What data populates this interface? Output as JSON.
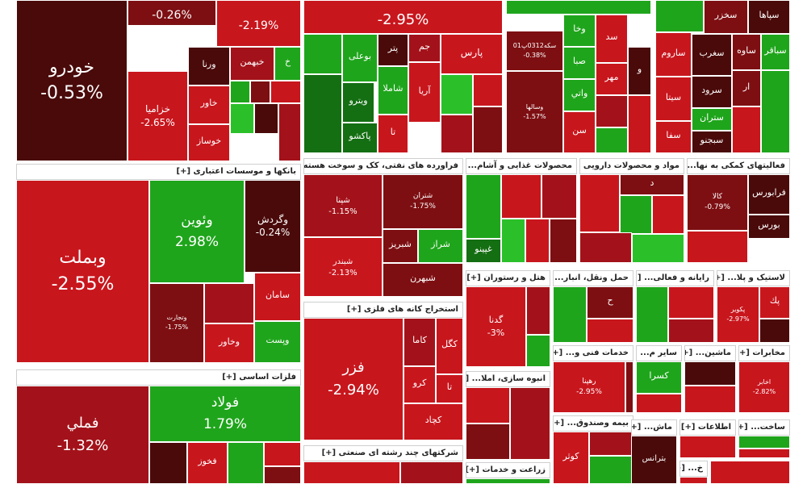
{
  "colors": {
    "dark_red": "#4a0a0a",
    "red": "#c8161d",
    "mid_red": "#a3121a",
    "deep_red": "#7d0f12",
    "green": "#1fa51c",
    "light_green": "#2bc02a",
    "dark_green": "#146e12"
  },
  "sectors": [
    {
      "id": "top-left",
      "header": "",
      "tiles": [
        {
          "name": "",
          "pct": "-0.26%",
          "c": "deep_red",
          "fs": 14
        },
        {
          "name": "",
          "pct": "-2.19%",
          "c": "red",
          "fs": 14
        },
        {
          "name": "خودرو",
          "pct": "-0.53%",
          "c": "dark_red",
          "fs": 22
        },
        {
          "name": "خزامیا",
          "pct": "-2.65%",
          "c": "red",
          "fs": 12
        },
        {
          "name": "ورنا",
          "pct": "",
          "c": "dark_red",
          "fs": 11
        },
        {
          "name": "خبهمن",
          "pct": "",
          "c": "mid_red",
          "fs": 11
        },
        {
          "name": "خ",
          "pct": "",
          "c": "green",
          "fs": 11
        },
        {
          "name": "خاور",
          "pct": "",
          "c": "red",
          "fs": 11
        },
        {
          "name": "خوساز",
          "pct": "",
          "c": "red",
          "fs": 11
        },
        {
          "name": "",
          "pct": "",
          "c": "green",
          "fs": 9
        },
        {
          "name": "",
          "pct": "",
          "c": "deep_red",
          "fs": 9
        },
        {
          "name": "",
          "pct": "",
          "c": "red",
          "fs": 9
        },
        {
          "name": "",
          "pct": "",
          "c": "light_green",
          "fs": 9
        },
        {
          "name": "",
          "pct": "",
          "c": "dark_red",
          "fs": 9
        },
        {
          "name": "",
          "pct": "",
          "c": "mid_red",
          "fs": 9
        }
      ]
    },
    {
      "id": "petroleum",
      "header": "",
      "tiles": [
        {
          "name": "",
          "pct": "-2.95%",
          "c": "red",
          "fs": 18
        },
        {
          "name": "",
          "pct": "",
          "c": "green",
          "fs": 11
        },
        {
          "name": "بوعلی",
          "pct": "",
          "c": "green",
          "fs": 11
        },
        {
          "name": "پتر",
          "pct": "",
          "c": "dark_red",
          "fs": 11
        },
        {
          "name": "جم",
          "pct": "",
          "c": "mid_red",
          "fs": 11
        },
        {
          "name": "پارس",
          "pct": "",
          "c": "red",
          "fs": 12
        },
        {
          "name": "ویترو",
          "pct": "",
          "c": "dark_green",
          "fs": 11
        },
        {
          "name": "شاملا",
          "pct": "",
          "c": "green",
          "fs": 11
        },
        {
          "name": "آریا",
          "pct": "",
          "c": "red",
          "fs": 11
        },
        {
          "name": "پاکشو",
          "pct": "",
          "c": "dark_green",
          "fs": 11
        },
        {
          "name": "تا",
          "pct": "",
          "c": "red",
          "fs": 11
        },
        {
          "name": "",
          "pct": "",
          "c": "dark_green",
          "fs": 9
        },
        {
          "name": "",
          "pct": "",
          "c": "light_green",
          "fs": 9
        },
        {
          "name": "",
          "pct": "",
          "c": "red",
          "fs": 9
        },
        {
          "name": "",
          "pct": "",
          "c": "mid_red",
          "fs": 9
        },
        {
          "name": "",
          "pct": "",
          "c": "deep_red",
          "fs": 9
        }
      ]
    },
    {
      "id": "investment",
      "header": "",
      "tiles": [
        {
          "name": "",
          "pct": "",
          "c": "green",
          "fs": 11
        },
        {
          "name": "وخا",
          "pct": "",
          "c": "green",
          "fs": 11
        },
        {
          "name": "سد",
          "pct": "",
          "c": "red",
          "fs": 11
        },
        {
          "name": "سکه0312پ01",
          "pct": "-0.38%",
          "c": "deep_red",
          "fs": 8
        },
        {
          "name": "صبا",
          "pct": "",
          "c": "green",
          "fs": 11
        },
        {
          "name": "مهر",
          "pct": "",
          "c": "red",
          "fs": 11
        },
        {
          "name": "و",
          "pct": "",
          "c": "dark_red",
          "fs": 11
        },
        {
          "name": "وسالها",
          "pct": "-1.57%",
          "c": "deep_red",
          "fs": 8
        },
        {
          "name": "واتي",
          "pct": "",
          "c": "green",
          "fs": 11
        },
        {
          "name": "سن",
          "pct": "",
          "c": "red",
          "fs": 11
        },
        {
          "name": "",
          "pct": "",
          "c": "mid_red",
          "fs": 9
        },
        {
          "name": "",
          "pct": "",
          "c": "green",
          "fs": 9
        },
        {
          "name": "",
          "pct": "",
          "c": "red",
          "fs": 9
        }
      ]
    },
    {
      "id": "cement",
      "header": "",
      "tiles": [
        {
          "name": "سپاها",
          "pct": "",
          "c": "dark_red",
          "fs": 11
        },
        {
          "name": "سخزر",
          "pct": "",
          "c": "deep_red",
          "fs": 11
        },
        {
          "name": "",
          "pct": "",
          "c": "green",
          "fs": 9
        },
        {
          "name": "ساروم",
          "pct": "",
          "c": "red",
          "fs": 11
        },
        {
          "name": "سغرب",
          "pct": "",
          "c": "dark_red",
          "fs": 11
        },
        {
          "name": "ساوه",
          "pct": "",
          "c": "deep_red",
          "fs": 11
        },
        {
          "name": "سباقر",
          "pct": "",
          "c": "green",
          "fs": 11
        },
        {
          "name": "سرود",
          "pct": "",
          "c": "dark_red",
          "fs": 11
        },
        {
          "name": "ار",
          "pct": "",
          "c": "deep_red",
          "fs": 11
        },
        {
          "name": "سیتا",
          "pct": "",
          "c": "red",
          "fs": 11
        },
        {
          "name": "ستران",
          "pct": "",
          "c": "green",
          "fs": 11
        },
        {
          "name": "سفا",
          "pct": "",
          "c": "red",
          "fs": 11
        },
        {
          "name": "سبجنو",
          "pct": "",
          "c": "dark_red",
          "fs": 11
        },
        {
          "name": "",
          "pct": "",
          "c": "red",
          "fs": 9
        },
        {
          "name": "",
          "pct": "",
          "c": "green",
          "fs": 9
        }
      ]
    },
    {
      "id": "banks",
      "header": "بانکها و موسسات اعتباری [+]",
      "tiles": [
        {
          "name": "وبملت",
          "pct": "-2.55%",
          "c": "red",
          "fs": 22
        },
        {
          "name": "وئوین",
          "pct": "2.98%",
          "c": "green",
          "fs": 17
        },
        {
          "name": "وگردش",
          "pct": "-0.24%",
          "c": "dark_red",
          "fs": 12
        },
        {
          "name": "وتجارت",
          "pct": "-1.75%",
          "c": "deep_red",
          "fs": 8
        },
        {
          "name": "",
          "pct": "",
          "c": "mid_red",
          "fs": 9
        },
        {
          "name": "سامان",
          "pct": "",
          "c": "red",
          "fs": 11
        },
        {
          "name": "وخاور",
          "pct": "",
          "c": "red",
          "fs": 11
        },
        {
          "name": "وپست",
          "pct": "",
          "c": "green",
          "fs": 11
        }
      ]
    },
    {
      "id": "refinery",
      "header": "فراورده های نفتی، کک و سوخت هسته ای [+]",
      "tiles": [
        {
          "name": "شپنا",
          "pct": "-1.15%",
          "c": "mid_red",
          "fs": 10
        },
        {
          "name": "شتران",
          "pct": "-1.75%",
          "c": "deep_red",
          "fs": 9
        },
        {
          "name": "شبندر",
          "pct": "-2.13%",
          "c": "red",
          "fs": 10
        },
        {
          "name": "شبریز",
          "pct": "",
          "c": "deep_red",
          "fs": 11
        },
        {
          "name": "شراز",
          "pct": "",
          "c": "green",
          "fs": 11
        },
        {
          "name": "شبهرن",
          "pct": "",
          "c": "deep_red",
          "fs": 11
        },
        {
          "name": "",
          "pct": "",
          "c": "red",
          "fs": 9
        }
      ]
    },
    {
      "id": "food",
      "header": "محصولات غذایی و آشام... [+]",
      "tiles": [
        {
          "name": "",
          "pct": "",
          "c": "green",
          "fs": 9
        },
        {
          "name": "",
          "pct": "",
          "c": "red",
          "fs": 9
        },
        {
          "name": "غپینو",
          "pct": "",
          "c": "dark_green",
          "fs": 11
        },
        {
          "name": "",
          "pct": "",
          "c": "mid_red",
          "fs": 9
        },
        {
          "name": "",
          "pct": "",
          "c": "light_green",
          "fs": 9
        },
        {
          "name": "",
          "pct": "",
          "c": "red",
          "fs": 9
        },
        {
          "name": "",
          "pct": "",
          "c": "deep_red",
          "fs": 9
        }
      ]
    },
    {
      "id": "pharma",
      "header": "مواد و محصولات دارویی [+]",
      "tiles": [
        {
          "name": "",
          "pct": "",
          "c": "red",
          "fs": 9
        },
        {
          "name": "د",
          "pct": "",
          "c": "deep_red",
          "fs": 11
        },
        {
          "name": "",
          "pct": "",
          "c": "green",
          "fs": 9
        },
        {
          "name": "",
          "pct": "",
          "c": "red",
          "fs": 9
        },
        {
          "name": "",
          "pct": "",
          "c": "mid_red",
          "fs": 9
        },
        {
          "name": "",
          "pct": "",
          "c": "light_green",
          "fs": 9
        }
      ]
    },
    {
      "id": "other-support",
      "header": "فعالیتهای کمکی به نها... [+]",
      "tiles": [
        {
          "name": "کالا",
          "pct": "-0.79%",
          "c": "deep_red",
          "fs": 9
        },
        {
          "name": "فرابورس",
          "pct": "",
          "c": "dark_red",
          "fs": 11
        },
        {
          "name": "بورس",
          "pct": "",
          "c": "dark_red",
          "fs": 11
        },
        {
          "name": "",
          "pct": "",
          "c": "red",
          "fs": 9
        }
      ]
    },
    {
      "id": "metals",
      "header": "فلزات اساسی [+]",
      "tiles": [
        {
          "name": "فملي",
          "pct": "-1.32%",
          "c": "mid_red",
          "fs": 18
        },
        {
          "name": "فولاد",
          "pct": "1.79%",
          "c": "green",
          "fs": 17
        },
        {
          "name": "فخوز",
          "pct": "",
          "c": "red",
          "fs": 11
        },
        {
          "name": "",
          "pct": "",
          "c": "dark_red",
          "fs": 9
        },
        {
          "name": "",
          "pct": "",
          "c": "green",
          "fs": 9
        },
        {
          "name": "",
          "pct": "",
          "c": "red",
          "fs": 9
        },
        {
          "name": "",
          "pct": "",
          "c": "deep_red",
          "fs": 9
        }
      ]
    },
    {
      "id": "mining",
      "header": "استخراج کانه های فلزی [+]",
      "tiles": [
        {
          "name": "فزر",
          "pct": "-2.94%",
          "c": "red",
          "fs": 18
        },
        {
          "name": "کاما",
          "pct": "",
          "c": "mid_red",
          "fs": 11
        },
        {
          "name": "کگل",
          "pct": "",
          "c": "red",
          "fs": 11
        },
        {
          "name": "کرو",
          "pct": "",
          "c": "red",
          "fs": 11
        },
        {
          "name": "تا",
          "pct": "",
          "c": "red",
          "fs": 11
        },
        {
          "name": "کچاد",
          "pct": "",
          "c": "red",
          "fs": 11
        }
      ]
    },
    {
      "id": "hotel",
      "header": "هتل و رستوران [+]",
      "tiles": [
        {
          "name": "گدنا",
          "pct": "-3%",
          "c": "red",
          "fs": 11
        },
        {
          "name": "",
          "pct": "",
          "c": "mid_red",
          "fs": 9
        },
        {
          "name": "",
          "pct": "",
          "c": "green",
          "fs": 9
        }
      ]
    },
    {
      "id": "transport",
      "header": "حمل ونقل، انبار... [+]",
      "tiles": [
        {
          "name": "",
          "pct": "",
          "c": "green",
          "fs": 9
        },
        {
          "name": "ح",
          "pct": "",
          "c": "deep_red",
          "fs": 11
        },
        {
          "name": "",
          "pct": "",
          "c": "red",
          "fs": 9
        }
      ]
    },
    {
      "id": "computer",
      "header": "رایانه و فعالی... [+]",
      "tiles": [
        {
          "name": "",
          "pct": "",
          "c": "green",
          "fs": 9
        },
        {
          "name": "",
          "pct": "",
          "c": "red",
          "fs": 9
        },
        {
          "name": "",
          "pct": "",
          "c": "mid_red",
          "fs": 9
        }
      ]
    },
    {
      "id": "plastic",
      "header": "لاستیک و پلا... [+]",
      "tiles": [
        {
          "name": "پکوير",
          "pct": "-2.97%",
          "c": "red",
          "fs": 8
        },
        {
          "name": "پك",
          "pct": "",
          "c": "red",
          "fs": 11
        },
        {
          "name": "",
          "pct": "",
          "c": "dark_red",
          "fs": 9
        }
      ]
    },
    {
      "id": "engineering",
      "header": "خدمات فنی و... [+]",
      "tiles": [
        {
          "name": "رهپنا",
          "pct": "-2.95%",
          "c": "red",
          "fs": 9
        },
        {
          "name": "",
          "pct": "",
          "c": "deep_red",
          "fs": 9
        }
      ]
    },
    {
      "id": "other-mining",
      "header": "سایر م... [+]",
      "tiles": [
        {
          "name": "کسرا",
          "pct": "",
          "c": "green",
          "fs": 11
        },
        {
          "name": "",
          "pct": "",
          "c": "red",
          "fs": 9
        }
      ]
    },
    {
      "id": "machinery",
      "header": "ماشین... [+]",
      "tiles": [
        {
          "name": "",
          "pct": "",
          "c": "dark_red",
          "fs": 9
        },
        {
          "name": "",
          "pct": "",
          "c": "red",
          "fs": 9
        }
      ]
    },
    {
      "id": "telecom",
      "header": "مخابرات [+]",
      "tiles": [
        {
          "name": "اخابر",
          "pct": "-2.82%",
          "c": "red",
          "fs": 8
        }
      ]
    },
    {
      "id": "mass-construction",
      "header": "انبوه سازی، املا... [+]",
      "tiles": [
        {
          "name": "",
          "pct": "",
          "c": "red",
          "fs": 9
        },
        {
          "name": "",
          "pct": "",
          "c": "deep_red",
          "fs": 9
        },
        {
          "name": "",
          "pct": "",
          "c": "mid_red",
          "fs": 9
        }
      ]
    },
    {
      "id": "insurance",
      "header": "بیمه وصندوق... [+]",
      "tiles": [
        {
          "name": "کوثر",
          "pct": "",
          "c": "red",
          "fs": 11
        },
        {
          "name": "",
          "pct": "",
          "c": "mid_red",
          "fs": 9
        },
        {
          "name": "",
          "pct": "",
          "c": "green",
          "fs": 9
        }
      ]
    },
    {
      "id": "auto-parts",
      "header": "ماش... [+]",
      "tiles": [
        {
          "name": "بترانس",
          "pct": "",
          "c": "dark_red",
          "fs": 10
        }
      ]
    },
    {
      "id": "it",
      "header": "اطلاعات [+]",
      "tiles": [
        {
          "name": "",
          "pct": "",
          "c": "red",
          "fs": 9
        }
      ]
    },
    {
      "id": "construction",
      "header": "ساخت... [+]",
      "tiles": [
        {
          "name": "",
          "pct": "",
          "c": "green",
          "fs": 9
        },
        {
          "name": "",
          "pct": "",
          "c": "red",
          "fs": 9
        }
      ]
    },
    {
      "id": "multi-industry",
      "header": "شرکتهای چند رشته ای صنعتی [+]",
      "tiles": [
        {
          "name": "",
          "pct": "",
          "c": "red",
          "fs": 9
        },
        {
          "name": "",
          "pct": "",
          "c": "mid_red",
          "fs": 9
        }
      ]
    },
    {
      "id": "agriculture",
      "header": "زراعت و خدمات [+]",
      "tiles": [
        {
          "name": "",
          "pct": "",
          "c": "green",
          "fs": 9
        }
      ]
    },
    {
      "id": "misc-1",
      "header": "خ... [+]",
      "tiles": [
        {
          "name": "",
          "pct": "",
          "c": "red",
          "fs": 9
        }
      ]
    },
    {
      "id": "misc-2",
      "header": "",
      "tiles": [
        {
          "name": "",
          "pct": "",
          "c": "red",
          "fs": 9
        }
      ]
    }
  ]
}
